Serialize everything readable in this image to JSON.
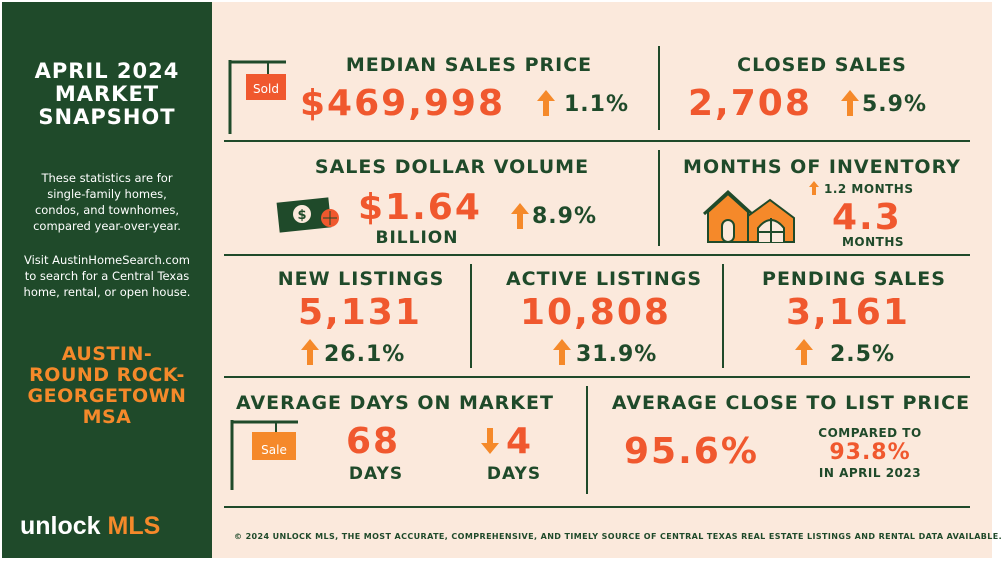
{
  "sidebar": {
    "title_lines": [
      "APRIL 2024",
      "MARKET",
      "SNAPSHOT"
    ],
    "description_lines": [
      "These statistics are for",
      "single-family homes,",
      "condos, and townhomes,",
      "compared year-over-year."
    ],
    "visit_lines": [
      "Visit AustinHomeSearch.com",
      "to search for a Central Texas",
      "home, rental, or open house."
    ],
    "region_lines": [
      "AUSTIN-",
      "ROUND ROCK-",
      "GEORGETOWN",
      "MSA"
    ],
    "logo_unlock": "unlock",
    "logo_mls": "MLS"
  },
  "colors": {
    "green": "#1f4a2a",
    "orange": "#f0582e",
    "accent": "#f5892a",
    "background": "#fbe9dc"
  },
  "median_sales_price": {
    "title": "MEDIAN SALES PRICE",
    "value": "$469,998",
    "change": "1.1%",
    "direction": "up",
    "sign_label": "Sold"
  },
  "closed_sales": {
    "title": "CLOSED SALES",
    "value": "2,708",
    "change": "5.9%",
    "direction": "up"
  },
  "sales_dollar_volume": {
    "title": "SALES DOLLAR VOLUME",
    "value": "$1.64",
    "unit": "BILLION",
    "change": "8.9%",
    "direction": "up",
    "icon": "money-bill-icon"
  },
  "months_of_inventory": {
    "title": "MONTHS OF INVENTORY",
    "change": "1.2 MONTHS",
    "direction": "up",
    "value": "4.3",
    "unit": "MONTHS",
    "icon": "house-icon"
  },
  "new_listings": {
    "title": "NEW LISTINGS",
    "value": "5,131",
    "change": "26.1%",
    "direction": "up"
  },
  "active_listings": {
    "title": "ACTIVE LISTINGS",
    "value": "10,808",
    "change": "31.9%",
    "direction": "up"
  },
  "pending_sales": {
    "title": "PENDING SALES",
    "value": "3,161",
    "change": "2.5%",
    "direction": "up"
  },
  "average_days_on_market": {
    "title": "AVERAGE DAYS ON MARKET",
    "value": "68",
    "unit": "DAYS",
    "change": "4",
    "change_unit": "DAYS",
    "direction": "down",
    "sign_label": "Sale"
  },
  "average_close_to_list": {
    "title": "AVERAGE CLOSE TO LIST PRICE",
    "value": "95.6%",
    "compared_label": "COMPARED TO",
    "compared_value": "93.8%",
    "compared_period": "IN APRIL 2023"
  },
  "footer": "© 2024 UNLOCK MLS, THE MOST ACCURATE, COMPREHENSIVE, AND TIMELY SOURCE  OF CENTRAL TEXAS REAL ESTATE LISTINGS AND RENTAL DATA AVAILABLE."
}
